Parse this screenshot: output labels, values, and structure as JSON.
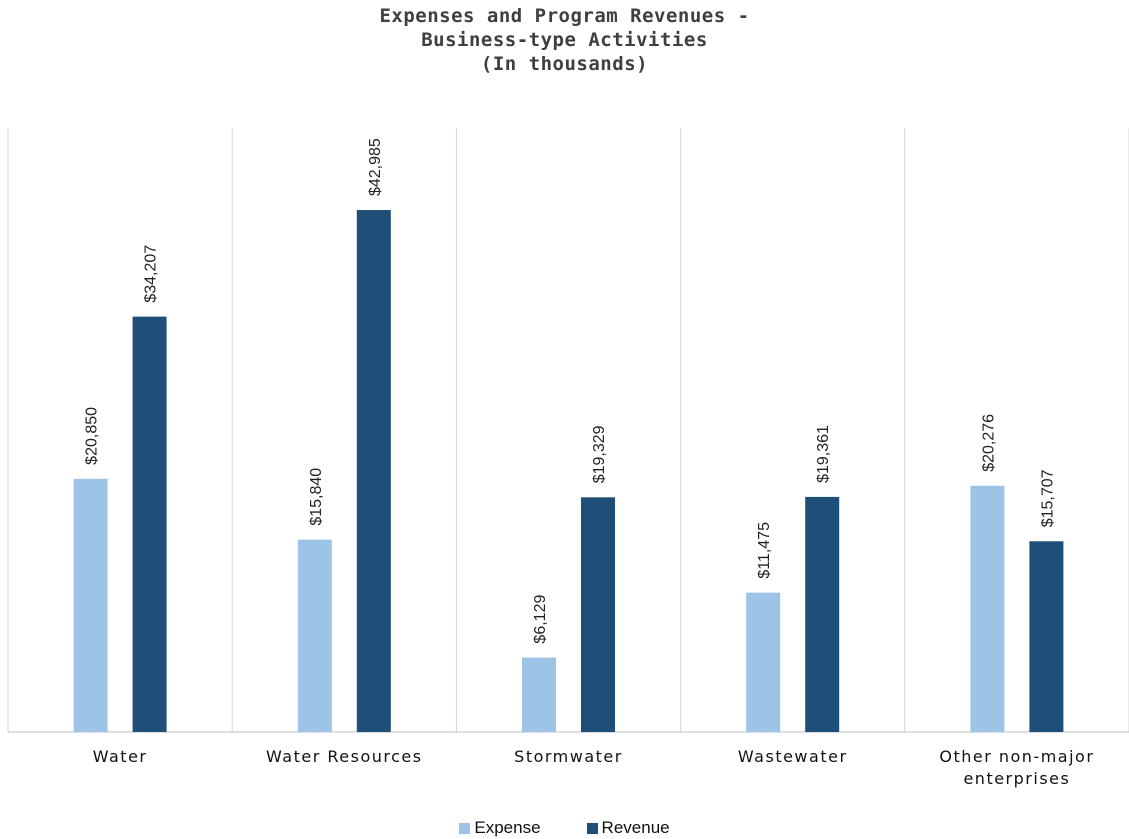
{
  "chart_data": {
    "type": "bar",
    "title_lines": [
      "Expenses and Program Revenues -",
      "Business-type Activities",
      "(In thousands)"
    ],
    "categories": [
      [
        "Water"
      ],
      [
        "Water Resources"
      ],
      [
        "Stormwater"
      ],
      [
        "Wastewater"
      ],
      [
        "Other non-major",
        "enterprises"
      ]
    ],
    "series": [
      {
        "name": "Expense",
        "color": "#9dc3e6",
        "values": [
          20850,
          15840,
          6129,
          11475,
          20276
        ],
        "labels": [
          "$20,850",
          "$15,840",
          "$6,129",
          "$11,475",
          "$20,276"
        ]
      },
      {
        "name": "Revenue",
        "color": "#1f4e79",
        "values": [
          34207,
          42985,
          19329,
          19361,
          15707
        ],
        "labels": [
          "$34,207",
          "$42,985",
          "$19,329",
          "$19,361",
          "$15,707"
        ]
      }
    ],
    "ylim": [
      0,
      50400
    ],
    "grid": false,
    "category_separators": true,
    "legend": "bottom-center"
  }
}
